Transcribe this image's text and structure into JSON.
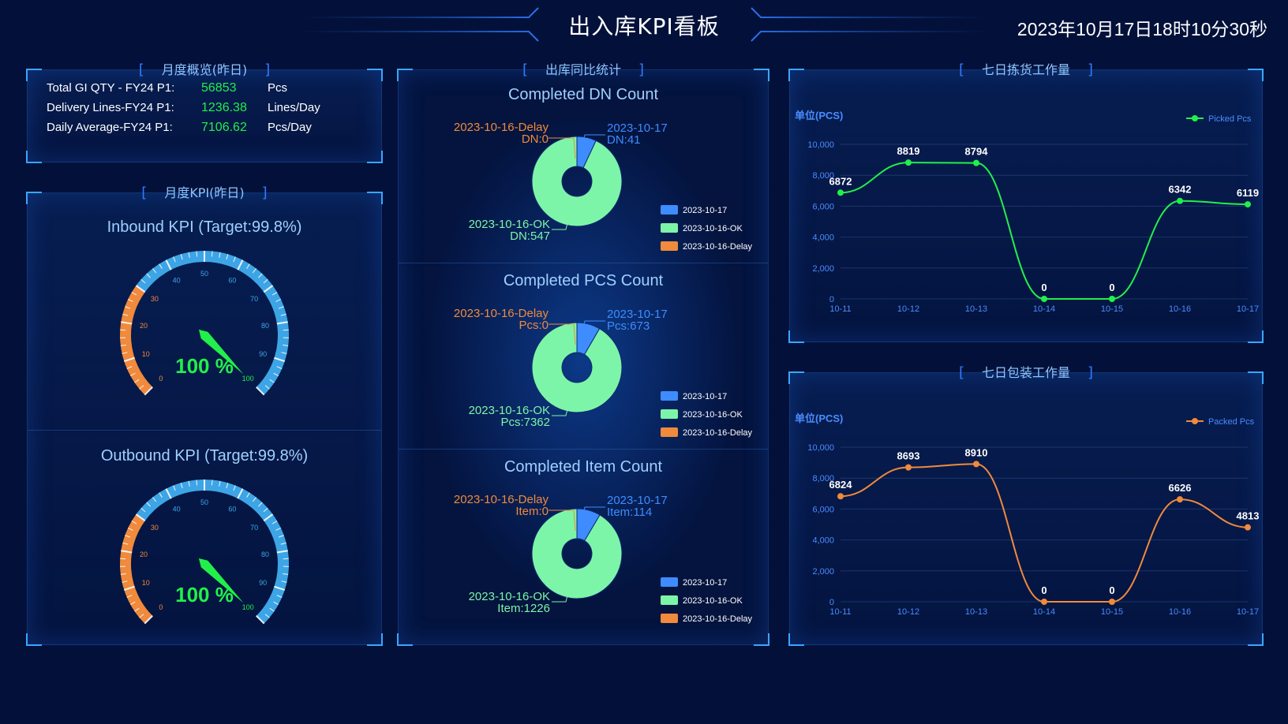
{
  "header": {
    "title": "出入库KPI看板",
    "datetime": "2023年10月17日18时10分30秒"
  },
  "colors": {
    "background": "#03113a",
    "accent": "#3aa6ff",
    "green": "#21f04a",
    "orange": "#f08a3c",
    "mint": "#7df5a8",
    "blue": "#3e8cff"
  },
  "overview": {
    "title": "月度概览(昨日)",
    "rows": [
      {
        "label": "Total GI QTY - FY24 P1:",
        "value": "56853",
        "unit": "Pcs"
      },
      {
        "label": "Delivery Lines-FY24 P1:",
        "value": "1236.38",
        "unit": "Lines/Day"
      },
      {
        "label": "Daily Average-FY24 P1:",
        "value": "7106.62",
        "unit": "Pcs/Day"
      }
    ]
  },
  "kpi": {
    "title": "月度KPI(昨日)",
    "gauges": [
      {
        "title": "Inbound KPI (Target:99.8%)",
        "value": 100,
        "label": "100 %"
      },
      {
        "title": "Outbound KPI (Target:99.8%)",
        "value": 100,
        "label": "100 %"
      }
    ],
    "ticks": [
      "0",
      "10",
      "20",
      "30",
      "40",
      "50",
      "60",
      "70",
      "80",
      "90",
      "100"
    ]
  },
  "outbound_compare": {
    "title": "出库同比统计",
    "legend": [
      "2023-10-17",
      "2023-10-16-OK",
      "2023-10-16-Delay"
    ],
    "charts": [
      {
        "title": "Completed DN Count",
        "delay_label": "2023-10-16-Delay",
        "delay_value": "DN:0",
        "today_label": "2023-10-17",
        "today_value": "DN:41",
        "ok_label": "2023-10-16-OK",
        "ok_value": "DN:547"
      },
      {
        "title": "Completed PCS Count",
        "delay_label": "2023-10-16-Delay",
        "delay_value": "Pcs:0",
        "today_label": "2023-10-17",
        "today_value": "Pcs:673",
        "ok_label": "2023-10-16-OK",
        "ok_value": "Pcs:7362"
      },
      {
        "title": "Completed Item Count",
        "delay_label": "2023-10-16-Delay",
        "delay_value": "Item:0",
        "today_label": "2023-10-17",
        "today_value": "Item:114",
        "ok_label": "2023-10-16-OK",
        "ok_value": "Item:1226"
      }
    ]
  },
  "chart_data": [
    {
      "type": "pie",
      "title": "Completed DN Count",
      "categories": [
        "2023-10-17",
        "2023-10-16-OK",
        "2023-10-16-Delay"
      ],
      "values": [
        41,
        547,
        0
      ]
    },
    {
      "type": "pie",
      "title": "Completed PCS Count",
      "categories": [
        "2023-10-17",
        "2023-10-16-OK",
        "2023-10-16-Delay"
      ],
      "values": [
        673,
        7362,
        0
      ]
    },
    {
      "type": "pie",
      "title": "Completed Item Count",
      "categories": [
        "2023-10-17",
        "2023-10-16-OK",
        "2023-10-16-Delay"
      ],
      "values": [
        114,
        1226,
        0
      ]
    },
    {
      "type": "line",
      "title": "七日拣货工作量",
      "ylabel": "单位(PCS)",
      "x": [
        "10-11",
        "10-12",
        "10-13",
        "10-14",
        "10-15",
        "10-16",
        "10-17"
      ],
      "series": [
        {
          "name": "Picked Pcs",
          "values": [
            6872,
            8819,
            8794,
            0,
            0,
            6342,
            6119
          ]
        }
      ],
      "yticks": [
        "0",
        "2,000",
        "4,000",
        "6,000",
        "8,000",
        "10,000"
      ],
      "ylim": [
        0,
        10000
      ],
      "legend": "top-right"
    },
    {
      "type": "line",
      "title": "七日包装工作量",
      "ylabel": "单位(PCS)",
      "x": [
        "10-11",
        "10-12",
        "10-13",
        "10-14",
        "10-15",
        "10-16",
        "10-17"
      ],
      "series": [
        {
          "name": "Packed Pcs",
          "values": [
            6824,
            8693,
            8910,
            0,
            0,
            6626,
            4813
          ]
        }
      ],
      "yticks": [
        "0",
        "2,000",
        "4,000",
        "6,000",
        "8,000",
        "10,000"
      ],
      "ylim": [
        0,
        10000
      ],
      "legend": "top-right"
    }
  ]
}
